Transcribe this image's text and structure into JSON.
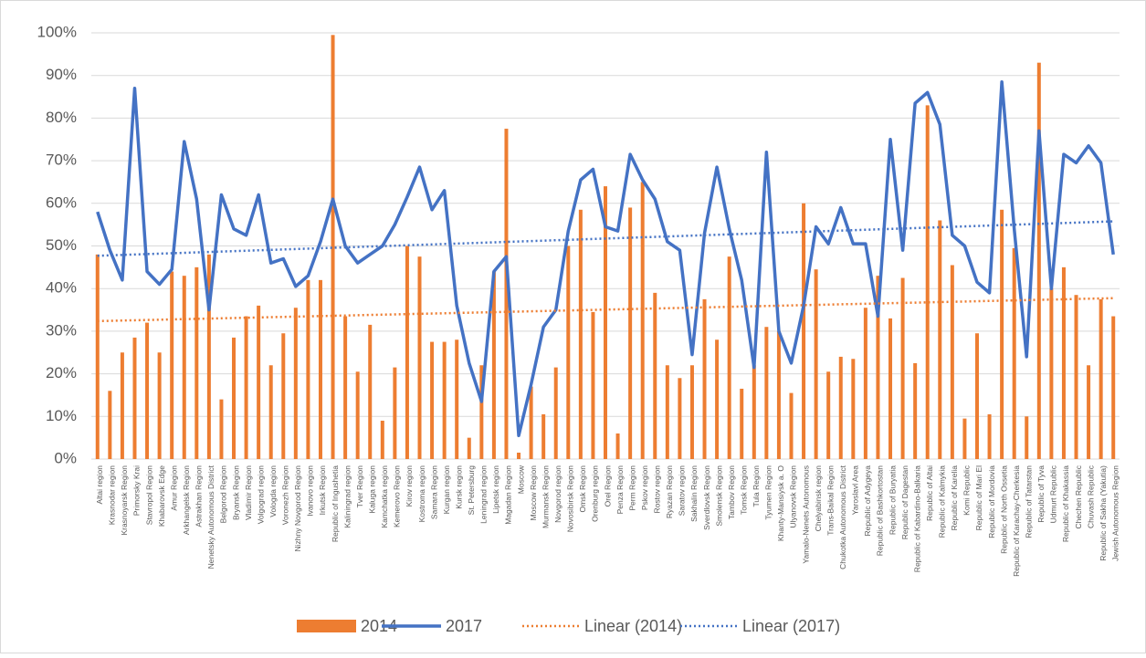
{
  "chart_data": {
    "type": "bar_line",
    "categories": [
      "Altai region",
      "Krasnodar region",
      "Krasnoyarsk Region",
      "Primorsky Krai",
      "Stavropol Region",
      "Khabarovsk Edge",
      "Amur Region",
      "Arkhangelsk Region",
      "Astrakhan Region",
      "Nenetsky Autonomous District",
      "Belgorod Region",
      "Bryansk Region",
      "Vladimir Region",
      "Volgograd region",
      "Vologda region",
      "Voronezh Region",
      "Nizhny Novgorod Region",
      "Ivanovo region",
      "Irkutsk Region",
      "Republic of Ingushetia",
      "Kaliningrad region",
      "Tver Region",
      "Kaluga region",
      "Kamchatka region",
      "Kemerovo Region",
      "Kirov region",
      "Kostroma region",
      "Samara Region",
      "Kurgan region",
      "Kursk region",
      "St. Petersburg",
      "Leningrad region",
      "Lipetsk region",
      "Magadan Region",
      "Moscow",
      "Moscow Region",
      "Murmansk Region",
      "Novgorod region",
      "Novosibirsk Region",
      "Omsk Region",
      "Orenburg region",
      "Orel Region",
      "Penza Region",
      "Perm Region",
      "Pskov region",
      "Rostov region",
      "Ryazan Region",
      "Saratov region",
      "Sakhalin Region",
      "Sverdlovsk Region",
      "Smolensk Region",
      "Tambov Region",
      "Tomsk Region",
      "Tula Region",
      "Tyumen Region",
      "Khanty-Mansiysk a. O",
      "Ulyanovsk Region",
      "Yamalo-Nenets Autonomous",
      "Chelyabinsk region",
      "Trans-Baikal Region",
      "Chukotka Autonomous District",
      "Yaroslavl Area",
      "Republic of Adygeya",
      "Republic of Bashkortostan",
      "Republic of Buryatia",
      "Republic of Dagestan",
      "Republic of Kabardino-Balkaria",
      "Republic of Altai",
      "Republic of Kalmykia",
      "Republic of Karelia",
      "Komi Republic",
      "Republic of Mari El",
      "Republic of Mordovia",
      "Republic of North Ossetia",
      "Republic of Karachay-Cherkesia",
      "Republic of Tatarstan",
      "Republic of Tyva",
      "Udmurt Republic",
      "Republic of Khakassia",
      "Chechen Republic",
      "Chuvash Republic",
      "Republic of Sakha (Yakutia)",
      "Jewish Autonomous Region"
    ],
    "series": [
      {
        "name": "2014",
        "kind": "bar",
        "color": "#ed7d31",
        "values": [
          48,
          16,
          25,
          28.5,
          32,
          25,
          44,
          43,
          45,
          48,
          14,
          28.5,
          33.5,
          36,
          22,
          29.5,
          35.5,
          42,
          42,
          99.5,
          33.5,
          20.5,
          31.5,
          9,
          21.5,
          50,
          47.5,
          27.5,
          27.5,
          28,
          5,
          22,
          44,
          77.5,
          1.5,
          17,
          10.5,
          21.5,
          50,
          58.5,
          34.5,
          64,
          6,
          59,
          65,
          39,
          22,
          19,
          22,
          37.5,
          28,
          47.5,
          16.5,
          22,
          31,
          30,
          15.5,
          60,
          44.5,
          20.5,
          24,
          23.5,
          35.5,
          43,
          33,
          42.5,
          22.5,
          83,
          56,
          45.5,
          9.5,
          29.5,
          10.5,
          58.5,
          49.5,
          10,
          93,
          40,
          45,
          38.5,
          22,
          37.5,
          33.5
        ]
      },
      {
        "name": "2017",
        "kind": "line",
        "color": "#4472c4",
        "values": [
          58,
          49,
          42,
          87,
          44,
          41,
          44.5,
          74.5,
          61,
          35,
          62,
          54,
          52.5,
          62,
          46,
          47,
          40.5,
          43,
          51,
          61,
          50,
          46,
          48,
          50,
          55,
          61.5,
          68.5,
          58.5,
          63,
          36,
          22.5,
          13.5,
          44,
          47.5,
          5.5,
          17.5,
          31,
          35,
          53.5,
          65.5,
          68,
          54.5,
          53.5,
          71.5,
          65.5,
          61,
          51,
          49,
          24.5,
          53,
          68.5,
          54,
          42,
          21.5,
          72,
          30,
          22.5,
          36,
          54.5,
          50.5,
          59,
          50.5,
          50.5,
          33.5,
          75,
          49,
          83.5,
          86,
          78.5,
          52.5,
          50,
          41.5,
          39,
          88.5,
          54,
          24,
          77,
          40,
          71.5,
          69.5,
          73.5,
          69.5,
          48
        ]
      }
    ],
    "trendlines": [
      {
        "name": "Linear (2014)",
        "of": "2014",
        "fit": "linear",
        "color": "#ed7d31"
      },
      {
        "name": "Linear (2017)",
        "of": "2017",
        "fit": "linear",
        "color": "#4472c4"
      }
    ],
    "ylim": [
      0,
      100
    ],
    "yticks": [
      {
        "value": 0,
        "label": "0%"
      },
      {
        "value": 10,
        "label": "10%"
      },
      {
        "value": 20,
        "label": "20%"
      },
      {
        "value": 30,
        "label": "30%"
      },
      {
        "value": 40,
        "label": "40%"
      },
      {
        "value": 50,
        "label": "50%"
      },
      {
        "value": 60,
        "label": "60%"
      },
      {
        "value": 70,
        "label": "70%"
      },
      {
        "value": 80,
        "label": "80%"
      },
      {
        "value": 90,
        "label": "90%"
      },
      {
        "value": 100,
        "label": "100%"
      }
    ],
    "grid": true,
    "legend": "bottom"
  }
}
